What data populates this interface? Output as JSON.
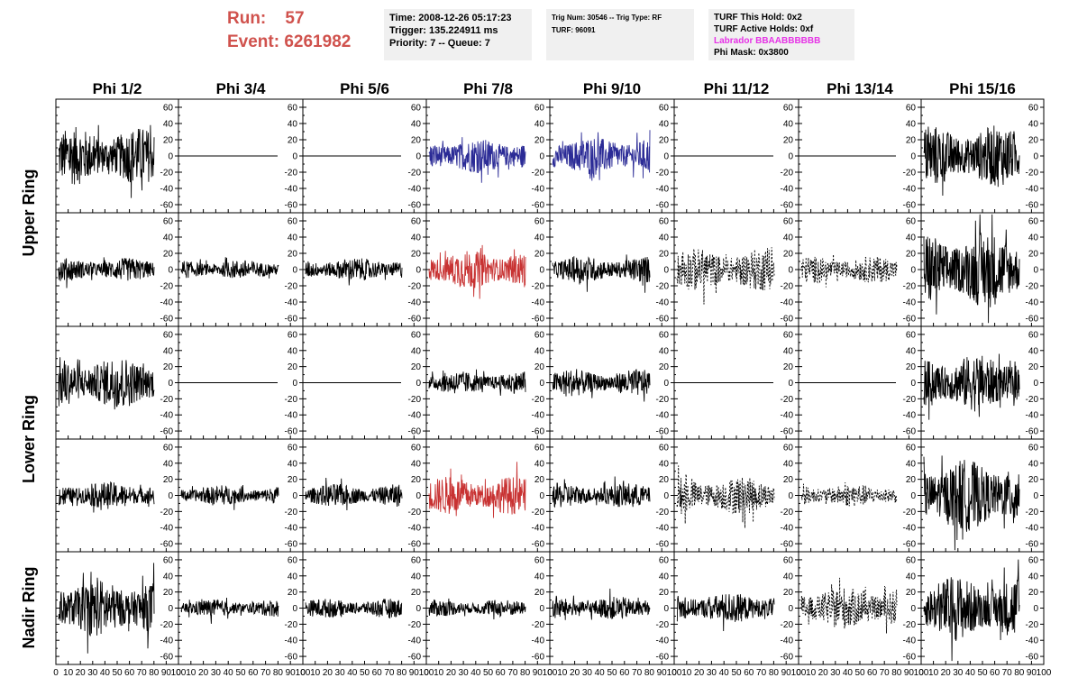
{
  "header": {
    "run_label": "Run:",
    "run_value": "57",
    "event_label": "Event:",
    "event_value": "6261982",
    "info_box_1": [
      "Time: 2008-12-26 05:17:23",
      "Trigger: 135.224911 ms",
      "Priority: 7 -- Queue: 7"
    ],
    "info_box_2": [
      "Trig Num: 30546 -- Trig Type: RF",
      "",
      "TURF: 96091"
    ],
    "info_box_3": [
      "TURF This Hold: 0x2",
      "TURF Active Holds: 0xf",
      "Labrador BBAABBBBBB",
      "Phi Mask: 0x3800"
    ],
    "colors": {
      "run": "#d0524d",
      "labrador": "#e632e6",
      "blue_trace": "#2b2b96",
      "red_trace": "#c83232"
    }
  },
  "chart_data": {
    "type": "line",
    "title": "",
    "columns": [
      "Phi 1/2",
      "Phi 3/4",
      "Phi 5/6",
      "Phi 7/8",
      "Phi 9/10",
      "Phi 11/12",
      "Phi 13/14",
      "Phi 15/16"
    ],
    "rows": [
      "Upper Ring",
      "Upper Ring",
      "Lower Ring",
      "Lower Ring",
      "Nadir Ring"
    ],
    "row_labels": [
      "Upper Ring",
      "Lower Ring",
      "Nadir Ring"
    ],
    "ylim": [
      -70,
      70
    ],
    "xlim": [
      0,
      100
    ],
    "yticks": [
      -60,
      -40,
      -20,
      0,
      20,
      40,
      60
    ],
    "ytick_labels": [
      "-60",
      "-40",
      "-20",
      "0",
      "20",
      "40",
      "60"
    ],
    "xtick_labels": [
      "0",
      "10",
      "20",
      "30",
      "40",
      "50",
      "60",
      "70",
      "80",
      "90",
      "100"
    ],
    "xtick_label_text": "0 10 20 30 40 50 60 70 80 90 100",
    "grid": false,
    "panels": [
      [
        {
          "style": "solid",
          "color": "black",
          "amp": 30,
          "flat": false
        },
        {
          "style": "solid",
          "color": "black",
          "amp": 0,
          "flat": true
        },
        {
          "style": "solid",
          "color": "black",
          "amp": 0,
          "flat": true
        },
        {
          "style": "solid",
          "color": "blue",
          "amp": 18,
          "flat": false
        },
        {
          "style": "solid",
          "color": "blue",
          "amp": 20,
          "flat": false
        },
        {
          "style": "solid",
          "color": "black",
          "amp": 0,
          "flat": true
        },
        {
          "style": "solid",
          "color": "black",
          "amp": 0,
          "flat": true
        },
        {
          "style": "solid",
          "color": "black",
          "amp": 32,
          "flat": false
        }
      ],
      [
        {
          "style": "solid",
          "color": "black",
          "amp": 12,
          "flat": false
        },
        {
          "style": "solid",
          "color": "black",
          "amp": 10,
          "flat": false
        },
        {
          "style": "solid",
          "color": "black",
          "amp": 12,
          "flat": false
        },
        {
          "style": "solid",
          "color": "red",
          "amp": 20,
          "flat": false
        },
        {
          "style": "solid",
          "color": "black",
          "amp": 14,
          "flat": false
        },
        {
          "style": "dashed",
          "color": "black",
          "amp": 22,
          "flat": false
        },
        {
          "style": "dashed",
          "color": "black",
          "amp": 14,
          "flat": false
        },
        {
          "style": "solid",
          "color": "black",
          "amp": 40,
          "flat": false
        }
      ],
      [
        {
          "style": "solid",
          "color": "black",
          "amp": 28,
          "flat": false
        },
        {
          "style": "solid",
          "color": "black",
          "amp": 0,
          "flat": true
        },
        {
          "style": "solid",
          "color": "black",
          "amp": 0,
          "flat": true
        },
        {
          "style": "solid",
          "color": "black",
          "amp": 12,
          "flat": false
        },
        {
          "style": "solid",
          "color": "black",
          "amp": 14,
          "flat": false
        },
        {
          "style": "solid",
          "color": "black",
          "amp": 0,
          "flat": true
        },
        {
          "style": "solid",
          "color": "black",
          "amp": 0,
          "flat": true
        },
        {
          "style": "solid",
          "color": "black",
          "amp": 30,
          "flat": false
        }
      ],
      [
        {
          "style": "solid",
          "color": "black",
          "amp": 14,
          "flat": false
        },
        {
          "style": "solid",
          "color": "black",
          "amp": 10,
          "flat": false
        },
        {
          "style": "solid",
          "color": "black",
          "amp": 12,
          "flat": false
        },
        {
          "style": "solid",
          "color": "red",
          "amp": 20,
          "flat": false
        },
        {
          "style": "solid",
          "color": "black",
          "amp": 13,
          "flat": false
        },
        {
          "style": "dashed",
          "color": "black",
          "amp": 20,
          "flat": false
        },
        {
          "style": "dashed",
          "color": "black",
          "amp": 12,
          "flat": false
        },
        {
          "style": "solid",
          "color": "black",
          "amp": 38,
          "flat": false
        }
      ],
      [
        {
          "style": "solid",
          "color": "black",
          "amp": 30,
          "flat": false
        },
        {
          "style": "solid",
          "color": "black",
          "amp": 9,
          "flat": false
        },
        {
          "style": "solid",
          "color": "black",
          "amp": 10,
          "flat": false
        },
        {
          "style": "solid",
          "color": "black",
          "amp": 9,
          "flat": false
        },
        {
          "style": "solid",
          "color": "black",
          "amp": 12,
          "flat": false
        },
        {
          "style": "solid",
          "color": "black",
          "amp": 16,
          "flat": false
        },
        {
          "style": "dashed",
          "color": "black",
          "amp": 22,
          "flat": false
        },
        {
          "style": "solid",
          "color": "black",
          "amp": 34,
          "flat": false
        }
      ]
    ]
  }
}
